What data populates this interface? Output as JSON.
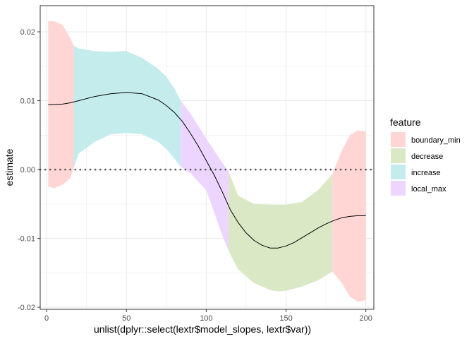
{
  "chart_data": {
    "type": "area",
    "xlabel": "unlist(dplyr::select(lextr$model_slopes, lextr$var))",
    "ylabel": "estimate",
    "xlim": [
      -4,
      205
    ],
    "ylim": [
      -0.0203,
      0.0238
    ],
    "x_ticks": [
      0,
      50,
      100,
      150,
      200
    ],
    "x_tick_labels": [
      "0",
      "50",
      "100",
      "150",
      "200"
    ],
    "y_ticks": [
      -0.02,
      -0.01,
      0.0,
      0.01,
      0.02
    ],
    "y_tick_labels": [
      "-0.02",
      "-0.01",
      "0.00",
      "0.01",
      "0.02"
    ],
    "grid": true,
    "reference_line": {
      "y": 0,
      "style": "dotted"
    },
    "legend": {
      "title": "feature",
      "placement": "right",
      "entries": [
        {
          "name": "boundary_min",
          "color": "#FFD6D4"
        },
        {
          "name": "decrease",
          "color": "#DAE8C5"
        },
        {
          "name": "increase",
          "color": "#C5ECEC"
        },
        {
          "name": "local_max",
          "color": "#ECD6FF"
        }
      ]
    },
    "estimate_line": {
      "x": [
        1,
        10,
        15,
        20,
        30,
        40,
        50,
        60,
        70,
        75,
        80,
        85,
        90,
        95,
        100,
        105,
        110,
        115,
        120,
        125,
        130,
        135,
        140,
        145,
        150,
        155,
        160,
        165,
        170,
        175,
        180,
        185,
        190,
        195,
        200
      ],
      "y": [
        0.0094,
        0.0095,
        0.0097,
        0.01,
        0.0106,
        0.011,
        0.0112,
        0.011,
        0.0101,
        0.0093,
        0.0083,
        0.007,
        0.0053,
        0.0034,
        0.0013,
        -0.0008,
        -0.0032,
        -0.0058,
        -0.0077,
        -0.0092,
        -0.0103,
        -0.011,
        -0.0114,
        -0.0114,
        -0.0111,
        -0.0106,
        -0.0099,
        -0.0092,
        -0.0085,
        -0.0079,
        -0.0074,
        -0.007,
        -0.0068,
        -0.0067,
        -0.0067
      ]
    },
    "ribbon": {
      "x": [
        1,
        5,
        10,
        15,
        17,
        20,
        30,
        40,
        50,
        60,
        70,
        75,
        80,
        84,
        90,
        100,
        110,
        114,
        120,
        130,
        140,
        145,
        150,
        160,
        170,
        179,
        185,
        190,
        195,
        200
      ],
      "upper": [
        0.0216,
        0.0215,
        0.021,
        0.019,
        0.018,
        0.0176,
        0.0172,
        0.0171,
        0.0172,
        0.0162,
        0.0146,
        0.0135,
        0.0118,
        0.01,
        0.0082,
        0.0045,
        0.001,
        -0.0003,
        -0.0038,
        -0.005,
        -0.0051,
        -0.0051,
        -0.0051,
        -0.0047,
        -0.003,
        -0.0007,
        0.0028,
        0.005,
        0.0057,
        0.0055
      ],
      "lower": [
        -0.0025,
        -0.0027,
        -0.0022,
        -0.0012,
        0.0002,
        0.0023,
        0.004,
        0.0051,
        0.0053,
        0.0051,
        0.004,
        0.003,
        0.0016,
        0.0004,
        -0.0005,
        -0.003,
        -0.0095,
        -0.0118,
        -0.0145,
        -0.0165,
        -0.0175,
        -0.0177,
        -0.0176,
        -0.017,
        -0.0161,
        -0.0148,
        -0.0165,
        -0.0185,
        -0.0192,
        -0.019
      ],
      "segments": [
        {
          "feature": "boundary_min",
          "from": 1,
          "to": 17
        },
        {
          "feature": "increase",
          "from": 17,
          "to": 84
        },
        {
          "feature": "local_max",
          "from": 84,
          "to": 114
        },
        {
          "feature": "decrease",
          "from": 114,
          "to": 179
        },
        {
          "feature": "boundary_min",
          "from": 179,
          "to": 200
        }
      ]
    }
  }
}
